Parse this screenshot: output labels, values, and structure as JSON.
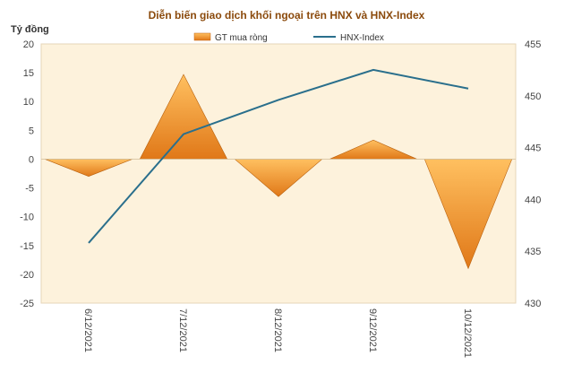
{
  "chart_data": {
    "type": "area+line",
    "title": "Diễn biến giao dịch khối ngoại trên HNX và HNX-Index",
    "ylabel_left": "Tỷ đồng",
    "categories": [
      "6/12/2021",
      "7/12/2021",
      "8/12/2021",
      "9/12/2021",
      "10/12/2021"
    ],
    "series": [
      {
        "name": "GT mua ròng",
        "axis": "left",
        "kind": "area",
        "values": [
          -3,
          14.7,
          -6.5,
          3.3,
          -19
        ]
      },
      {
        "name": "HNX-Index",
        "axis": "right",
        "kind": "line",
        "values": [
          435.8,
          446.3,
          449.6,
          452.5,
          450.7
        ]
      }
    ],
    "ylim_left": [
      -25,
      20
    ],
    "yticks_left": [
      20,
      15,
      10,
      5,
      0,
      -5,
      -10,
      -15,
      -20,
      -25
    ],
    "ylim_right": [
      430,
      455
    ],
    "yticks_right": [
      455,
      450,
      445,
      440,
      435,
      430
    ],
    "legend_position": "top",
    "colors": {
      "area_light": "#ffc060",
      "area_dark": "#e07818",
      "line": "#2a6f8c",
      "plot_bg": "#fdf2dc"
    }
  }
}
